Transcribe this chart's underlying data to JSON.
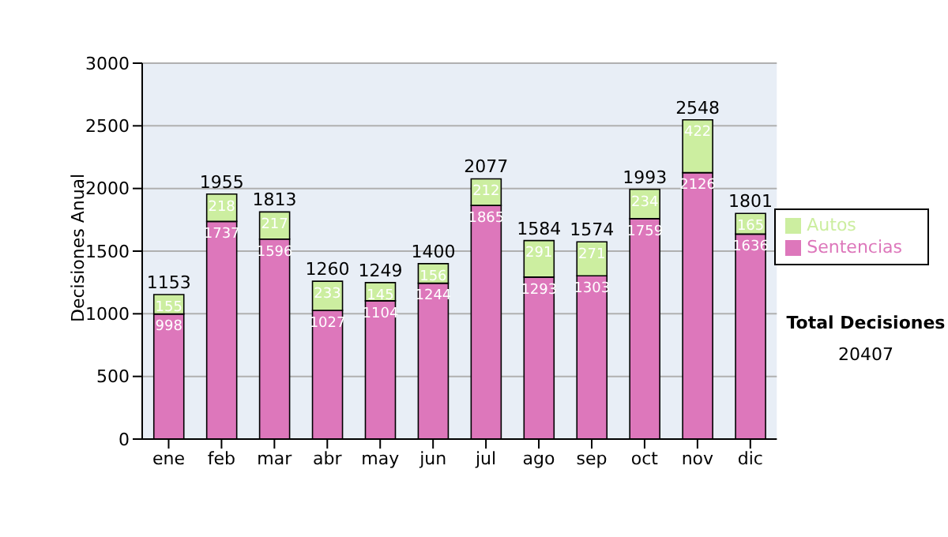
{
  "chart_data": {
    "type": "bar",
    "stacked": true,
    "ylabel": "Decisiones Anual",
    "categories": [
      "ene",
      "feb",
      "mar",
      "abr",
      "may",
      "jun",
      "jul",
      "ago",
      "sep",
      "oct",
      "nov",
      "dic"
    ],
    "series": [
      {
        "name": "Sentencias",
        "color": "#dd77bb",
        "values": [
          998,
          1737,
          1596,
          1027,
          1104,
          1244,
          1865,
          1293,
          1303,
          1759,
          2126,
          1636
        ]
      },
      {
        "name": "Autos",
        "color": "#cceea0",
        "values": [
          155,
          218,
          217,
          233,
          145,
          156,
          212,
          291,
          271,
          234,
          422,
          165
        ]
      }
    ],
    "totals": [
      "1153",
      "1955",
      "1813",
      "1260",
      "1249",
      "1400",
      "2077",
      "1584",
      "1574",
      "1993",
      "2548",
      "1801"
    ],
    "ylim": [
      0,
      3000
    ],
    "yticks": [
      0,
      500,
      1000,
      1500,
      2000,
      2500,
      3000
    ],
    "grid": "y",
    "legend": "right",
    "data_labels": true,
    "annotations": [
      "Total Decisiones",
      "20407"
    ]
  }
}
